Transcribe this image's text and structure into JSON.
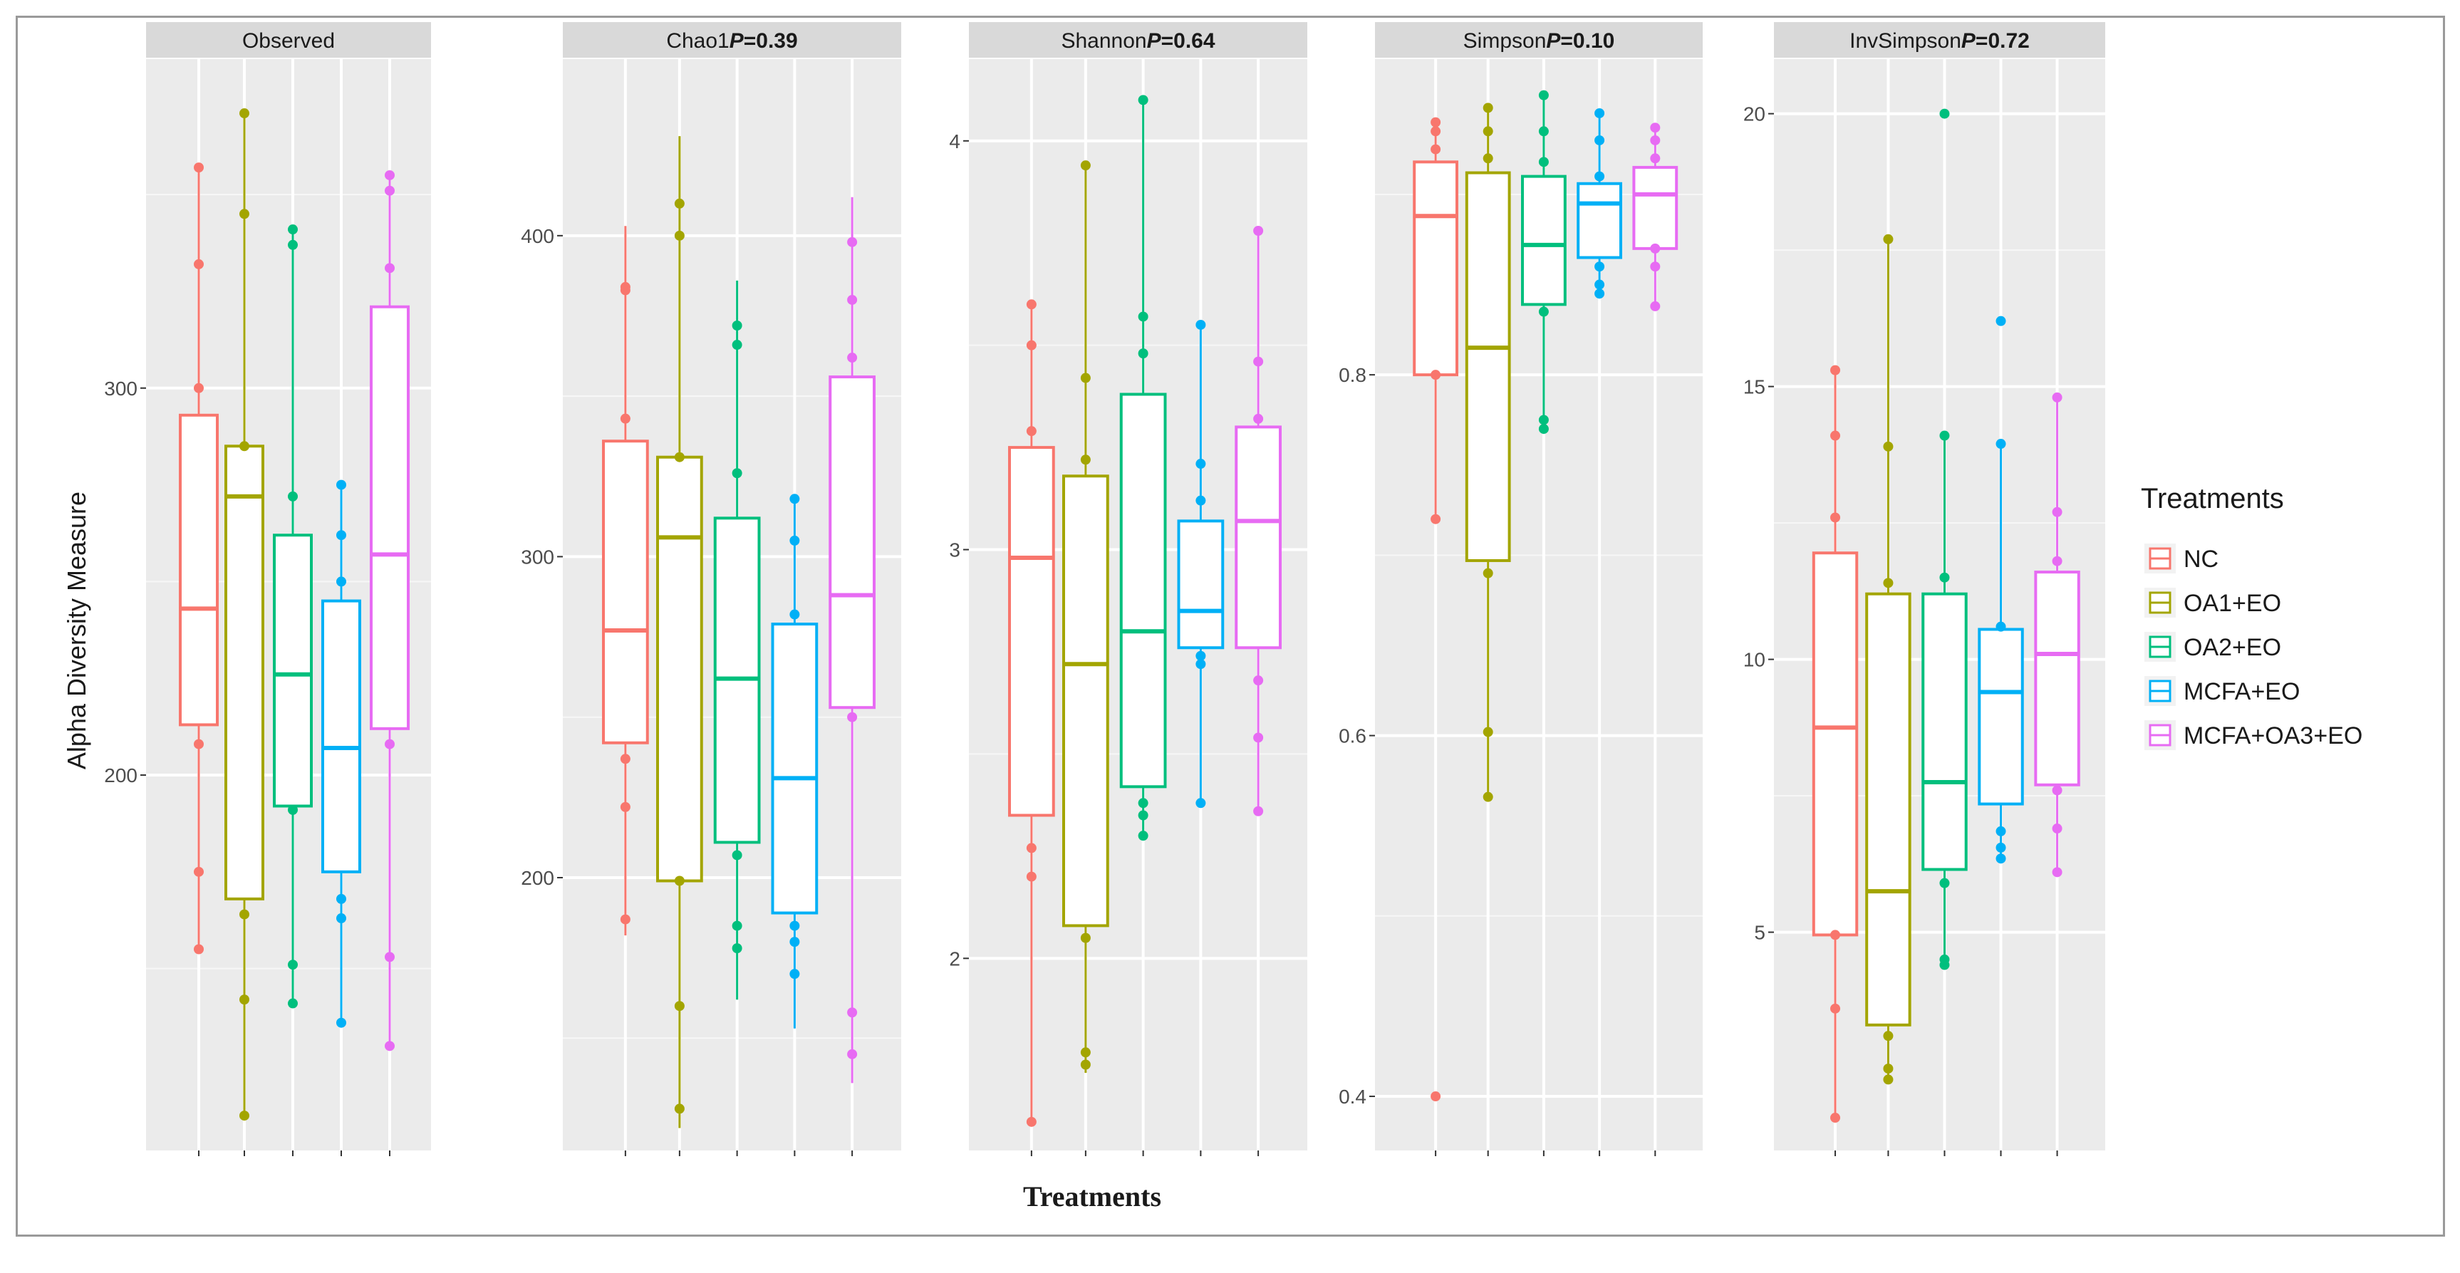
{
  "chart_data": {
    "type": "box",
    "ylabel": "Alpha Diversity Measure",
    "xlabel": "Treatments",
    "legend": {
      "title": "Treatments",
      "placement": "right",
      "entries": [
        {
          "name": "NC",
          "color": "#f8766d"
        },
        {
          "name": "OA1+EO",
          "color": "#a3a500"
        },
        {
          "name": "OA2+EO",
          "color": "#00bf7d"
        },
        {
          "name": "MCFA+EO",
          "color": "#00b0f6"
        },
        {
          "name": "MCFA+OA3+EO",
          "color": "#e76bf3"
        }
      ]
    },
    "panels": [
      {
        "name": "Observed",
        "p_label": "",
        "p_value": "",
        "ylim": [
          103,
          385
        ],
        "yticks": [
          200,
          300
        ],
        "ytick_labels": [
          "200",
          "300"
        ],
        "minor_grid": [
          150,
          250,
          350
        ],
        "boxes": [
          {
            "group": "NC",
            "low": 155,
            "q1": 213,
            "median": 243,
            "q3": 293,
            "high": 357,
            "points": [
              155,
              175,
              208,
              300,
              332,
              357
            ]
          },
          {
            "group": "OA1+EO",
            "low": 112,
            "q1": 168,
            "median": 272,
            "q3": 285,
            "high": 371,
            "points": [
              112,
              142,
              164,
              285,
              345,
              371
            ]
          },
          {
            "group": "OA2+EO",
            "low": 141,
            "q1": 192,
            "median": 226,
            "q3": 262,
            "high": 341,
            "points": [
              141,
              151,
              191,
              272,
              337,
              341
            ]
          },
          {
            "group": "MCFA+EO",
            "low": 136,
            "q1": 175,
            "median": 207,
            "q3": 245,
            "high": 275,
            "points": [
              136,
              163,
              168,
              250,
              262,
              275
            ]
          },
          {
            "group": "MCFA+OA3+EO",
            "low": 130,
            "q1": 212,
            "median": 257,
            "q3": 321,
            "high": 355,
            "points": [
              130,
              153,
              208,
              331,
              351,
              355
            ]
          }
        ]
      },
      {
        "name": "Chao1",
        "p_label": "P",
        "p_value": "=0.39",
        "ylim": [
          115,
          455
        ],
        "yticks": [
          200,
          300,
          400
        ],
        "ytick_labels": [
          "200",
          "300",
          "400"
        ],
        "minor_grid": [
          150,
          250,
          350
        ],
        "boxes": [
          {
            "group": "NC",
            "low": 182,
            "q1": 242,
            "median": 277,
            "q3": 336,
            "high": 403,
            "points": [
              187,
              222,
              237,
              343,
              383,
              384
            ]
          },
          {
            "group": "OA1+EO",
            "low": 122,
            "q1": 199,
            "median": 306,
            "q3": 331,
            "high": 431,
            "points": [
              128,
              160,
              199,
              331,
              400,
              410
            ]
          },
          {
            "group": "OA2+EO",
            "low": 162,
            "q1": 211,
            "median": 262,
            "q3": 312,
            "high": 386,
            "points": [
              178,
              185,
              207,
              326,
              366,
              372
            ]
          },
          {
            "group": "MCFA+EO",
            "low": 153,
            "q1": 189,
            "median": 231,
            "q3": 279,
            "high": 319,
            "points": [
              170,
              180,
              185,
              282,
              305,
              318
            ]
          },
          {
            "group": "MCFA+OA3+EO",
            "low": 136,
            "q1": 253,
            "median": 288,
            "q3": 356,
            "high": 412,
            "points": [
              145,
              158,
              250,
              362,
              380,
              398
            ]
          }
        ]
      },
      {
        "name": "Shannon",
        "p_label": "P",
        "p_value": "=0.64",
        "ylim": [
          1.53,
          4.2
        ],
        "yticks": [
          2,
          3,
          4
        ],
        "ytick_labels": [
          "2",
          "3",
          "4"
        ],
        "minor_grid": [
          2.5,
          3.5
        ],
        "boxes": [
          {
            "group": "NC",
            "low": 1.6,
            "q1": 2.35,
            "median": 2.98,
            "q3": 3.25,
            "high": 3.6,
            "points": [
              1.6,
              2.2,
              2.27,
              3.29,
              3.5,
              3.6
            ]
          },
          {
            "group": "OA1+EO",
            "low": 1.72,
            "q1": 2.08,
            "median": 2.72,
            "q3": 3.18,
            "high": 3.94,
            "points": [
              1.74,
              1.77,
              2.05,
              3.22,
              3.42,
              3.94
            ]
          },
          {
            "group": "OA2+EO",
            "low": 2.3,
            "q1": 2.42,
            "median": 2.8,
            "q3": 3.38,
            "high": 4.1,
            "points": [
              2.3,
              2.35,
              2.38,
              3.48,
              3.57,
              4.1
            ]
          },
          {
            "group": "MCFA+EO",
            "low": 2.38,
            "q1": 2.76,
            "median": 2.85,
            "q3": 3.07,
            "high": 3.55,
            "points": [
              2.38,
              2.72,
              2.74,
              3.12,
              3.21,
              3.55
            ]
          },
          {
            "group": "MCFA+OA3+EO",
            "low": 2.36,
            "q1": 2.76,
            "median": 3.07,
            "q3": 3.3,
            "high": 3.78,
            "points": [
              2.36,
              2.54,
              2.68,
              3.32,
              3.46,
              3.78
            ]
          }
        ]
      },
      {
        "name": "Simpson",
        "p_label": "P",
        "p_value": "=0.10",
        "ylim": [
          0.37,
          0.975
        ],
        "yticks": [
          0.4,
          0.6,
          0.8
        ],
        "ytick_labels": [
          "0.4",
          "0.6",
          "0.8"
        ],
        "minor_grid": [
          0.5,
          0.7,
          0.9
        ],
        "boxes": [
          {
            "group": "NC",
            "low": 0.718,
            "q1": 0.8,
            "median": 0.888,
            "q3": 0.918,
            "high": 0.94,
            "points": [
              0.4,
              0.72,
              0.8,
              0.925,
              0.935,
              0.94
            ]
          },
          {
            "group": "OA1+EO",
            "low": 0.565,
            "q1": 0.697,
            "median": 0.815,
            "q3": 0.912,
            "high": 0.948,
            "points": [
              0.566,
              0.602,
              0.69,
              0.92,
              0.935,
              0.948
            ]
          },
          {
            "group": "OA2+EO",
            "low": 0.768,
            "q1": 0.839,
            "median": 0.872,
            "q3": 0.91,
            "high": 0.955,
            "points": [
              0.77,
              0.775,
              0.835,
              0.918,
              0.935,
              0.955
            ]
          },
          {
            "group": "MCFA+EO",
            "low": 0.845,
            "q1": 0.865,
            "median": 0.895,
            "q3": 0.906,
            "high": 0.945,
            "points": [
              0.845,
              0.85,
              0.86,
              0.91,
              0.93,
              0.945
            ]
          },
          {
            "group": "MCFA+OA3+EO",
            "low": 0.838,
            "q1": 0.87,
            "median": 0.9,
            "q3": 0.915,
            "high": 0.937,
            "points": [
              0.838,
              0.86,
              0.87,
              0.92,
              0.93,
              0.937
            ]
          }
        ]
      },
      {
        "name": "InvSimpson",
        "p_label": "P",
        "p_value": "=0.72",
        "ylim": [
          1.0,
          21.0
        ],
        "yticks": [
          5,
          10,
          15,
          20
        ],
        "ytick_labels": [
          "5",
          "10",
          "15",
          "20"
        ],
        "minor_grid": [
          7.5,
          12.5,
          17.5
        ],
        "boxes": [
          {
            "group": "NC",
            "low": 1.6,
            "q1": 4.95,
            "median": 8.75,
            "q3": 11.95,
            "high": 15.3,
            "points": [
              1.6,
              3.6,
              4.95,
              12.6,
              14.1,
              15.3
            ]
          },
          {
            "group": "OA1+EO",
            "low": 2.3,
            "q1": 3.3,
            "median": 5.75,
            "q3": 11.2,
            "high": 17.7,
            "points": [
              2.3,
              2.5,
              3.1,
              11.4,
              13.9,
              17.7
            ]
          },
          {
            "group": "OA2+EO",
            "low": 4.4,
            "q1": 6.15,
            "median": 7.75,
            "q3": 11.2,
            "high": 14.1,
            "points": [
              4.4,
              4.5,
              5.9,
              11.5,
              14.1,
              20.0
            ]
          },
          {
            "group": "MCFA+EO",
            "low": 6.35,
            "q1": 7.35,
            "median": 9.4,
            "q3": 10.55,
            "high": 13.95,
            "points": [
              6.35,
              6.55,
              6.85,
              10.6,
              13.95,
              16.2
            ]
          },
          {
            "group": "MCFA+OA3+EO",
            "low": 6.1,
            "q1": 7.7,
            "median": 10.1,
            "q3": 11.6,
            "high": 14.8,
            "points": [
              6.1,
              6.9,
              7.6,
              11.8,
              12.7,
              14.8
            ]
          }
        ]
      }
    ]
  }
}
